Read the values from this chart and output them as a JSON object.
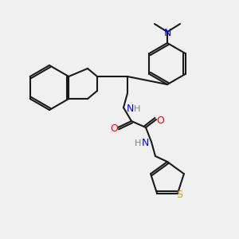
{
  "bg_color": "#f0f0f0",
  "bond_color": "#1a1a1a",
  "n_color": "#0000ff",
  "o_color": "#ff0000",
  "s_color": "#c8a000",
  "lw": 1.5,
  "atoms": {
    "N1_label": "N",
    "N2_label": "N",
    "N3_label": "N",
    "H1_label": "H",
    "H2_label": "H",
    "O1_label": "O",
    "O2_label": "O",
    "S_label": "S",
    "NMe2_label": "N"
  }
}
